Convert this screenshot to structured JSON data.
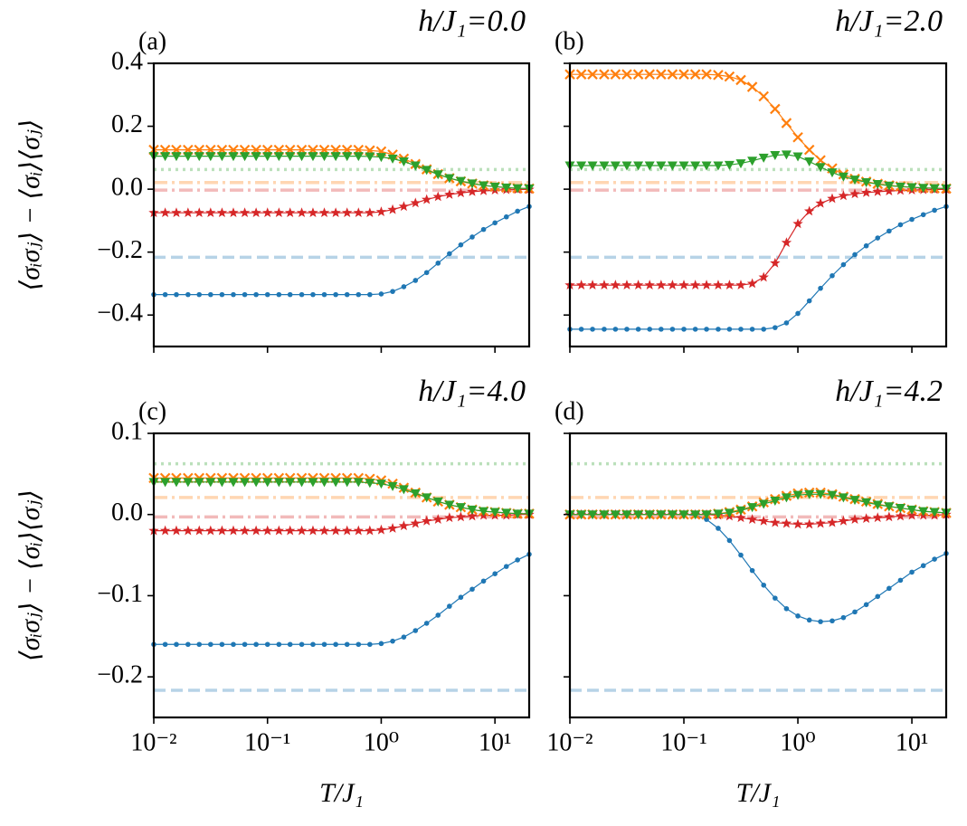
{
  "chart_data": [
    {
      "type": "line",
      "title": "h/J₁=0.0",
      "annotation": "(a)",
      "ylabel": "⟨σᵢσⱼ⟩ − ⟨σᵢ⟩⟨σⱼ⟩",
      "xscale": "log",
      "xlim": [
        0.01,
        20
      ],
      "ylim": [
        -0.5,
        0.4
      ],
      "xticks": [
        0.01,
        0.1,
        1,
        10
      ],
      "show_xticklabels": false,
      "show_yticklabels": true,
      "yticks": [
        0.4,
        0.2,
        {
          "value": 0,
          "label": "0.0"
        },
        {
          "value": -0.2,
          "label": "−0.2"
        },
        {
          "value": -0.4,
          "label": "−0.4"
        }
      ],
      "x": [
        0.01,
        0.0126,
        0.0158,
        0.02,
        0.0251,
        0.0316,
        0.0398,
        0.0501,
        0.0631,
        0.0794,
        0.1,
        0.126,
        0.158,
        0.2,
        0.251,
        0.316,
        0.398,
        0.501,
        0.631,
        0.794,
        1,
        1.26,
        1.58,
        2,
        2.51,
        3.16,
        3.98,
        5.01,
        6.31,
        7.94,
        10,
        12.6,
        15.8,
        20
      ],
      "hlines": [
        {
          "value": -0.2165,
          "color": "#1f77b4",
          "style": "dashed"
        },
        {
          "value": -0.003,
          "color": "#d62728",
          "style": "dashdot"
        },
        {
          "value": 0.021,
          "color": "#ff7f0e",
          "style": "dashdot"
        },
        {
          "value": 0.0625,
          "color": "#2ca02c",
          "style": "dotted"
        }
      ],
      "series": [
        {
          "color": "#1f77b4",
          "marker": "circle",
          "values": [
            -0.335,
            -0.335,
            -0.335,
            -0.335,
            -0.335,
            -0.335,
            -0.335,
            -0.335,
            -0.335,
            -0.335,
            -0.335,
            -0.335,
            -0.335,
            -0.335,
            -0.335,
            -0.335,
            -0.335,
            -0.335,
            -0.335,
            -0.335,
            -0.333,
            -0.325,
            -0.31,
            -0.29,
            -0.265,
            -0.235,
            -0.205,
            -0.177,
            -0.152,
            -0.128,
            -0.107,
            -0.088,
            -0.07,
            -0.055
          ]
        },
        {
          "color": "#d62728",
          "marker": "star",
          "values": [
            -0.075,
            -0.075,
            -0.075,
            -0.075,
            -0.075,
            -0.075,
            -0.075,
            -0.075,
            -0.075,
            -0.075,
            -0.075,
            -0.075,
            -0.075,
            -0.075,
            -0.075,
            -0.075,
            -0.075,
            -0.075,
            -0.075,
            -0.075,
            -0.072,
            -0.065,
            -0.055,
            -0.044,
            -0.033,
            -0.024,
            -0.017,
            -0.012,
            -0.008,
            -0.005,
            -0.003,
            -0.002,
            -0.001,
            -0.001
          ]
        },
        {
          "color": "#ff7f0e",
          "marker": "x",
          "values": [
            0.125,
            0.125,
            0.125,
            0.125,
            0.125,
            0.125,
            0.125,
            0.125,
            0.125,
            0.125,
            0.125,
            0.125,
            0.125,
            0.125,
            0.125,
            0.125,
            0.125,
            0.125,
            0.125,
            0.123,
            0.12,
            0.11,
            0.097,
            0.08,
            0.063,
            0.048,
            0.035,
            0.025,
            0.018,
            0.012,
            0.008,
            0.005,
            0.003,
            0.002
          ]
        },
        {
          "color": "#2ca02c",
          "marker": "triangle_down",
          "values": [
            0.105,
            0.105,
            0.105,
            0.105,
            0.105,
            0.105,
            0.105,
            0.105,
            0.105,
            0.105,
            0.105,
            0.105,
            0.105,
            0.105,
            0.105,
            0.105,
            0.105,
            0.105,
            0.105,
            0.104,
            0.102,
            0.097,
            0.088,
            0.075,
            0.061,
            0.047,
            0.035,
            0.026,
            0.018,
            0.012,
            0.008,
            0.005,
            0.003,
            0.002
          ]
        }
      ]
    },
    {
      "type": "line",
      "title": "h/J₁=2.0",
      "annotation": "(b)",
      "xscale": "log",
      "xlim": [
        0.01,
        20
      ],
      "ylim": [
        -0.5,
        0.4
      ],
      "xticks": [
        0.01,
        0.1,
        1,
        10
      ],
      "show_xticklabels": false,
      "show_yticklabels": false,
      "yticks": [
        0.4,
        0.2,
        0,
        -0.2,
        -0.4
      ],
      "x": [
        0.01,
        0.0126,
        0.0158,
        0.02,
        0.0251,
        0.0316,
        0.0398,
        0.0501,
        0.0631,
        0.0794,
        0.1,
        0.126,
        0.158,
        0.2,
        0.251,
        0.316,
        0.398,
        0.501,
        0.631,
        0.794,
        1,
        1.26,
        1.58,
        2,
        2.51,
        3.16,
        3.98,
        5.01,
        6.31,
        7.94,
        10,
        12.6,
        15.8,
        20
      ],
      "hlines": [
        {
          "value": -0.2165,
          "color": "#1f77b4",
          "style": "dashed"
        },
        {
          "value": -0.003,
          "color": "#d62728",
          "style": "dashdot"
        },
        {
          "value": 0.021,
          "color": "#ff7f0e",
          "style": "dashdot"
        },
        {
          "value": 0.0625,
          "color": "#2ca02c",
          "style": "dotted"
        }
      ],
      "series": [
        {
          "color": "#1f77b4",
          "marker": "circle",
          "values": [
            -0.445,
            -0.445,
            -0.445,
            -0.445,
            -0.445,
            -0.445,
            -0.445,
            -0.445,
            -0.445,
            -0.445,
            -0.445,
            -0.445,
            -0.445,
            -0.445,
            -0.445,
            -0.445,
            -0.445,
            -0.445,
            -0.44,
            -0.425,
            -0.395,
            -0.355,
            -0.315,
            -0.275,
            -0.24,
            -0.208,
            -0.18,
            -0.155,
            -0.133,
            -0.113,
            -0.096,
            -0.081,
            -0.067,
            -0.055
          ]
        },
        {
          "color": "#d62728",
          "marker": "star",
          "values": [
            -0.305,
            -0.305,
            -0.305,
            -0.305,
            -0.305,
            -0.305,
            -0.305,
            -0.305,
            -0.305,
            -0.305,
            -0.305,
            -0.305,
            -0.305,
            -0.305,
            -0.305,
            -0.305,
            -0.3,
            -0.28,
            -0.235,
            -0.17,
            -0.11,
            -0.07,
            -0.045,
            -0.03,
            -0.021,
            -0.015,
            -0.011,
            -0.008,
            -0.006,
            -0.004,
            -0.003,
            -0.002,
            -0.001,
            -0.001
          ]
        },
        {
          "color": "#ff7f0e",
          "marker": "x",
          "values": [
            0.365,
            0.365,
            0.365,
            0.365,
            0.365,
            0.365,
            0.365,
            0.365,
            0.365,
            0.365,
            0.365,
            0.365,
            0.365,
            0.363,
            0.358,
            0.347,
            0.325,
            0.295,
            0.255,
            0.21,
            0.165,
            0.125,
            0.092,
            0.066,
            0.047,
            0.033,
            0.024,
            0.017,
            0.012,
            0.009,
            0.006,
            0.004,
            0.003,
            0.002
          ]
        },
        {
          "color": "#2ca02c",
          "marker": "triangle_down",
          "values": [
            0.075,
            0.075,
            0.075,
            0.075,
            0.075,
            0.075,
            0.075,
            0.075,
            0.075,
            0.075,
            0.075,
            0.075,
            0.075,
            0.075,
            0.077,
            0.082,
            0.09,
            0.1,
            0.108,
            0.11,
            0.104,
            0.088,
            0.07,
            0.053,
            0.04,
            0.03,
            0.022,
            0.016,
            0.011,
            0.008,
            0.006,
            0.004,
            0.003,
            0.002
          ]
        }
      ]
    },
    {
      "type": "line",
      "title": "h/J₁=4.0",
      "annotation": "(c)",
      "xlabel": "T/J₁",
      "ylabel": "⟨σᵢσⱼ⟩ − ⟨σᵢ⟩⟨σⱼ⟩",
      "xscale": "log",
      "xlim": [
        0.01,
        20
      ],
      "ylim": [
        -0.25,
        0.1
      ],
      "xticks": [
        {
          "value": 0.01,
          "label": "10⁻²"
        },
        {
          "value": 0.1,
          "label": "10⁻¹"
        },
        {
          "value": 1,
          "label": "10⁰"
        },
        {
          "value": 10,
          "label": "10¹"
        }
      ],
      "show_xticklabels": true,
      "show_yticklabels": true,
      "yticks": [
        0.1,
        {
          "value": 0,
          "label": "0.0"
        },
        {
          "value": -0.1,
          "label": "−0.1"
        },
        {
          "value": -0.2,
          "label": "−0.2"
        }
      ],
      "x": [
        0.01,
        0.0126,
        0.0158,
        0.02,
        0.0251,
        0.0316,
        0.0398,
        0.0501,
        0.0631,
        0.0794,
        0.1,
        0.126,
        0.158,
        0.2,
        0.251,
        0.316,
        0.398,
        0.501,
        0.631,
        0.794,
        1,
        1.26,
        1.58,
        2,
        2.51,
        3.16,
        3.98,
        5.01,
        6.31,
        7.94,
        10,
        12.6,
        15.8,
        20
      ],
      "hlines": [
        {
          "value": -0.2165,
          "color": "#1f77b4",
          "style": "dashed"
        },
        {
          "value": -0.003,
          "color": "#d62728",
          "style": "dashdot"
        },
        {
          "value": 0.021,
          "color": "#ff7f0e",
          "style": "dashdot"
        },
        {
          "value": 0.0625,
          "color": "#2ca02c",
          "style": "dotted"
        }
      ],
      "series": [
        {
          "color": "#1f77b4",
          "marker": "circle",
          "values": [
            -0.16,
            -0.16,
            -0.16,
            -0.16,
            -0.16,
            -0.16,
            -0.16,
            -0.16,
            -0.16,
            -0.16,
            -0.16,
            -0.16,
            -0.16,
            -0.16,
            -0.16,
            -0.16,
            -0.16,
            -0.16,
            -0.16,
            -0.16,
            -0.159,
            -0.156,
            -0.151,
            -0.143,
            -0.134,
            -0.124,
            -0.113,
            -0.102,
            -0.092,
            -0.082,
            -0.073,
            -0.064,
            -0.056,
            -0.049
          ]
        },
        {
          "color": "#d62728",
          "marker": "star",
          "values": [
            -0.02,
            -0.02,
            -0.02,
            -0.02,
            -0.02,
            -0.02,
            -0.02,
            -0.02,
            -0.02,
            -0.02,
            -0.02,
            -0.02,
            -0.02,
            -0.02,
            -0.02,
            -0.02,
            -0.02,
            -0.02,
            -0.02,
            -0.02,
            -0.019,
            -0.017,
            -0.014,
            -0.011,
            -0.008,
            -0.006,
            -0.004,
            -0.003,
            -0.002,
            -0.001,
            -0.001,
            -0.001,
            0,
            0
          ]
        },
        {
          "color": "#ff7f0e",
          "marker": "x",
          "values": [
            0.045,
            0.045,
            0.045,
            0.045,
            0.045,
            0.045,
            0.045,
            0.045,
            0.045,
            0.045,
            0.045,
            0.045,
            0.045,
            0.045,
            0.045,
            0.045,
            0.045,
            0.045,
            0.045,
            0.044,
            0.042,
            0.038,
            0.033,
            0.027,
            0.021,
            0.016,
            0.012,
            0.009,
            0.006,
            0.004,
            0.003,
            0.002,
            0.001,
            0.001
          ]
        },
        {
          "color": "#2ca02c",
          "marker": "triangle_down",
          "values": [
            0.04,
            0.04,
            0.04,
            0.04,
            0.04,
            0.04,
            0.04,
            0.04,
            0.04,
            0.04,
            0.04,
            0.04,
            0.04,
            0.04,
            0.04,
            0.04,
            0.04,
            0.04,
            0.04,
            0.039,
            0.038,
            0.035,
            0.031,
            0.026,
            0.021,
            0.016,
            0.012,
            0.009,
            0.006,
            0.004,
            0.003,
            0.002,
            0.001,
            0.001
          ]
        }
      ]
    },
    {
      "type": "line",
      "title": "h/J₁=4.2",
      "annotation": "(d)",
      "xlabel": "T/J₁",
      "xscale": "log",
      "xlim": [
        0.01,
        20
      ],
      "ylim": [
        -0.25,
        0.1
      ],
      "xticks": [
        {
          "value": 0.01,
          "label": "10⁻²"
        },
        {
          "value": 0.1,
          "label": "10⁻¹"
        },
        {
          "value": 1,
          "label": "10⁰"
        },
        {
          "value": 10,
          "label": "10¹"
        }
      ],
      "show_xticklabels": true,
      "show_yticklabels": false,
      "yticks": [
        0.1,
        0,
        -0.1,
        -0.2
      ],
      "x": [
        0.01,
        0.0126,
        0.0158,
        0.02,
        0.0251,
        0.0316,
        0.0398,
        0.0501,
        0.0631,
        0.0794,
        0.1,
        0.126,
        0.158,
        0.2,
        0.251,
        0.316,
        0.398,
        0.501,
        0.631,
        0.794,
        1,
        1.26,
        1.58,
        2,
        2.51,
        3.16,
        3.98,
        5.01,
        6.31,
        7.94,
        10,
        12.6,
        15.8,
        20
      ],
      "hlines": [
        {
          "value": -0.2165,
          "color": "#1f77b4",
          "style": "dashed"
        },
        {
          "value": -0.003,
          "color": "#d62728",
          "style": "dashdot"
        },
        {
          "value": 0.021,
          "color": "#ff7f0e",
          "style": "dashdot"
        },
        {
          "value": 0.0625,
          "color": "#2ca02c",
          "style": "dotted"
        }
      ],
      "series": [
        {
          "color": "#1f77b4",
          "marker": "circle",
          "values": [
            0,
            0,
            0,
            0,
            0,
            0,
            0,
            0,
            0,
            0,
            0,
            -0.001,
            -0.006,
            -0.017,
            -0.032,
            -0.05,
            -0.069,
            -0.087,
            -0.103,
            -0.116,
            -0.125,
            -0.13,
            -0.132,
            -0.131,
            -0.127,
            -0.12,
            -0.111,
            -0.101,
            -0.091,
            -0.081,
            -0.071,
            -0.063,
            -0.055,
            -0.048
          ]
        },
        {
          "color": "#d62728",
          "marker": "star",
          "values": [
            0,
            0,
            0,
            0,
            0,
            0,
            0,
            0,
            0,
            0,
            0,
            0,
            0,
            -0.001,
            -0.002,
            -0.004,
            -0.006,
            -0.008,
            -0.01,
            -0.011,
            -0.012,
            -0.012,
            -0.011,
            -0.01,
            -0.008,
            -0.006,
            -0.005,
            -0.004,
            -0.003,
            -0.002,
            -0.001,
            -0.001,
            -0.001,
            0
          ]
        },
        {
          "color": "#ff7f0e",
          "marker": "x",
          "values": [
            0,
            0,
            0,
            0,
            0,
            0,
            0,
            0,
            0,
            0,
            0,
            0,
            0,
            0.001,
            0.003,
            0.006,
            0.01,
            0.015,
            0.019,
            0.023,
            0.026,
            0.027,
            0.027,
            0.025,
            0.022,
            0.019,
            0.016,
            0.013,
            0.01,
            0.008,
            0.006,
            0.004,
            0.003,
            0.002
          ]
        },
        {
          "color": "#2ca02c",
          "marker": "triangle_down",
          "values": [
            0,
            0,
            0,
            0,
            0,
            0,
            0,
            0,
            0,
            0,
            0,
            0,
            0,
            0.001,
            0.002,
            0.005,
            0.009,
            0.013,
            0.017,
            0.021,
            0.024,
            0.025,
            0.025,
            0.024,
            0.021,
            0.018,
            0.015,
            0.012,
            0.01,
            0.008,
            0.006,
            0.004,
            0.003,
            0.002
          ]
        }
      ]
    }
  ]
}
